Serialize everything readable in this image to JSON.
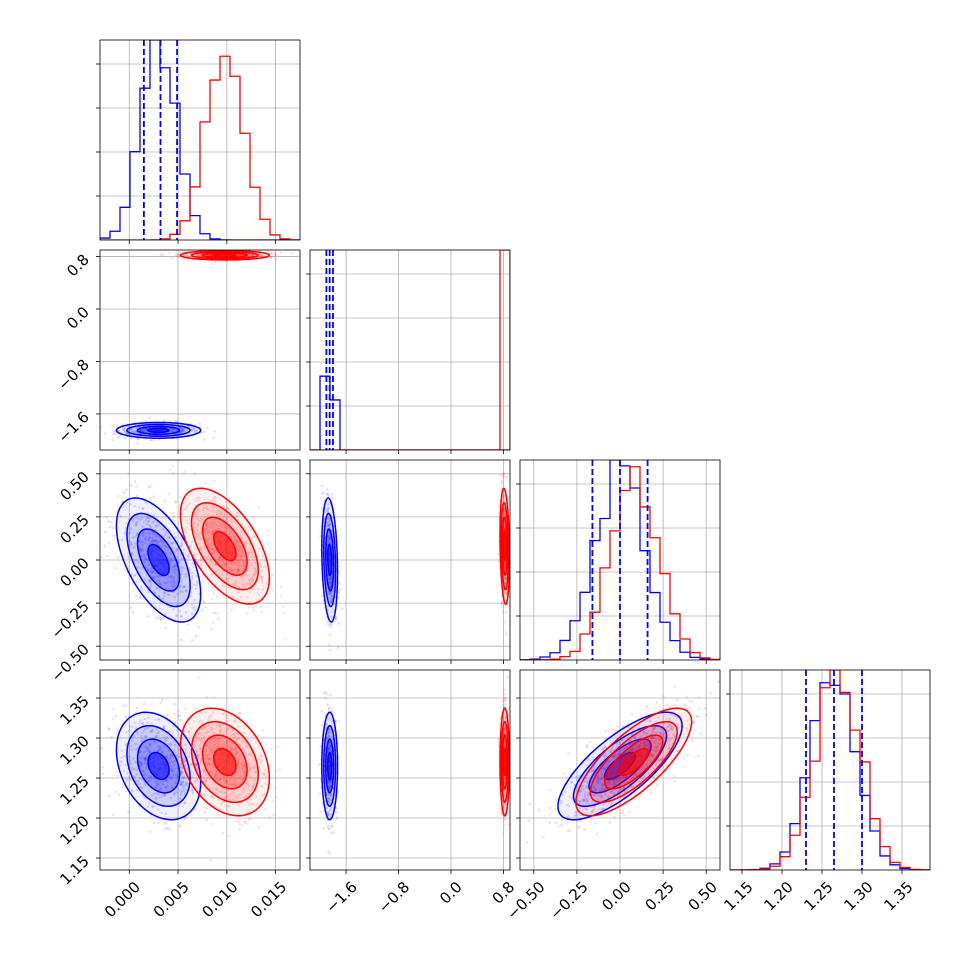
{
  "chart_data": {
    "type": "corner",
    "title": "",
    "grid": true,
    "legend": "none",
    "series": [
      {
        "color": "#0000ff",
        "means": [
          0.003,
          -1.85,
          0.0,
          1.265
        ],
        "sds": [
          0.0018,
          0.05,
          0.15,
          0.028
        ],
        "quantile_lines": {
          "0": [
            0.0015,
            0.0032,
            0.0049
          ],
          "1": [
            -1.9,
            -1.85,
            -1.8
          ],
          "2": [
            -0.16,
            0.0,
            0.16
          ],
          "3": [
            1.23,
            1.265,
            1.3
          ]
        }
      },
      {
        "color": "#ff0000",
        "means": [
          0.0098,
          0.82,
          0.08,
          1.27
        ],
        "sds": [
          0.0019,
          0.03,
          0.14,
          0.028
        ]
      }
    ],
    "correlations": {
      "0-2": -0.55,
      "0-3": -0.3,
      "1-2": -0.2,
      "1-3": 0.0,
      "2-3": 0.75
    },
    "x_ticks": [
      [
        "0.000",
        "0.005",
        "0.010",
        "0.015"
      ],
      [
        "−1.6",
        "−0.8",
        "0.0",
        "0.8"
      ],
      [
        "−0.50",
        "−0.25",
        "0.00",
        "0.25",
        "0.50"
      ],
      [
        "1.15",
        "1.20",
        "1.25",
        "1.30",
        "1.35"
      ]
    ],
    "y_ticks": [
      [],
      [
        "0.8",
        "0.0",
        "−0.8",
        "−1.6"
      ],
      [
        "0.50",
        "0.25",
        "0.00",
        "−0.25",
        "−0.50"
      ],
      [
        "1.35",
        "1.30",
        "1.25",
        "1.20",
        "1.15"
      ]
    ],
    "x_tick_values": [
      [
        0.0,
        0.005,
        0.01,
        0.015
      ],
      [
        -1.6,
        -0.8,
        0.0,
        0.8
      ],
      [
        -0.5,
        -0.25,
        0.0,
        0.25,
        0.5
      ],
      [
        1.15,
        1.2,
        1.25,
        1.3,
        1.35
      ]
    ],
    "axis_ranges": [
      [
        -0.003,
        0.0175
      ],
      [
        -2.15,
        0.9
      ],
      [
        -0.58,
        0.58
      ],
      [
        1.135,
        1.385
      ]
    ]
  }
}
